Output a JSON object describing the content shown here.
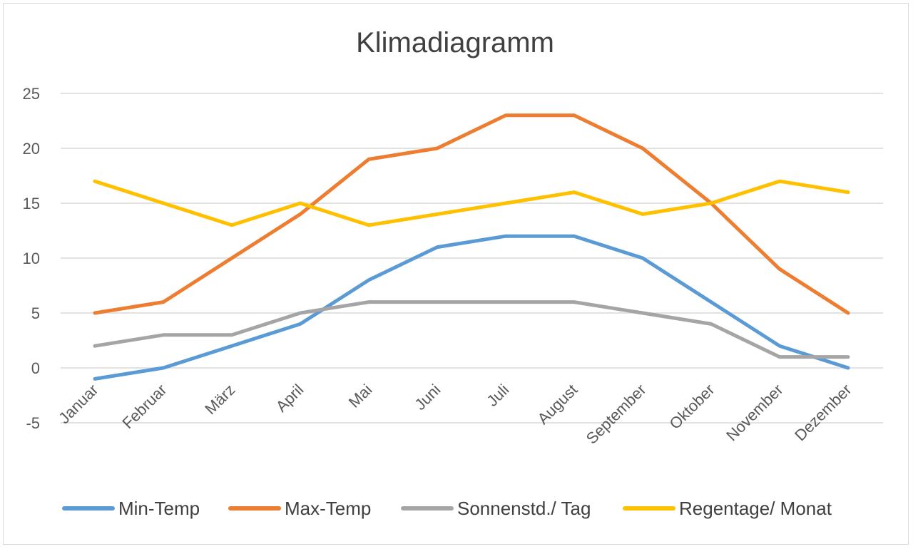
{
  "chart_data": {
    "type": "line",
    "title": "Klimadiagramm",
    "xlabel": "",
    "ylabel": "",
    "categories": [
      "Januar",
      "Februar",
      "März",
      "April",
      "Mai",
      "Juni",
      "Juli",
      "August",
      "September",
      "Oktober",
      "November",
      "Dezember"
    ],
    "ylim": [
      -5,
      25
    ],
    "yticks": [
      -5,
      0,
      5,
      10,
      15,
      20,
      25
    ],
    "grid": true,
    "legend_position": "bottom",
    "series": [
      {
        "name": "Min-Temp",
        "color": "#5b9bd5",
        "values": [
          -1,
          0,
          2,
          4,
          8,
          11,
          12,
          12,
          10,
          6,
          2,
          0
        ]
      },
      {
        "name": "Max-Temp",
        "color": "#ed7d31",
        "values": [
          5,
          6,
          10,
          14,
          19,
          20,
          23,
          23,
          20,
          15,
          9,
          5
        ]
      },
      {
        "name": "Sonnenstd./ Tag",
        "color": "#a5a5a5",
        "values": [
          2,
          3,
          3,
          5,
          6,
          6,
          6,
          6,
          5,
          4,
          1,
          1
        ]
      },
      {
        "name": "Regentage/ Monat",
        "color": "#ffc000",
        "values": [
          17,
          15,
          13,
          15,
          13,
          14,
          15,
          16,
          14,
          15,
          17,
          16
        ]
      }
    ]
  }
}
